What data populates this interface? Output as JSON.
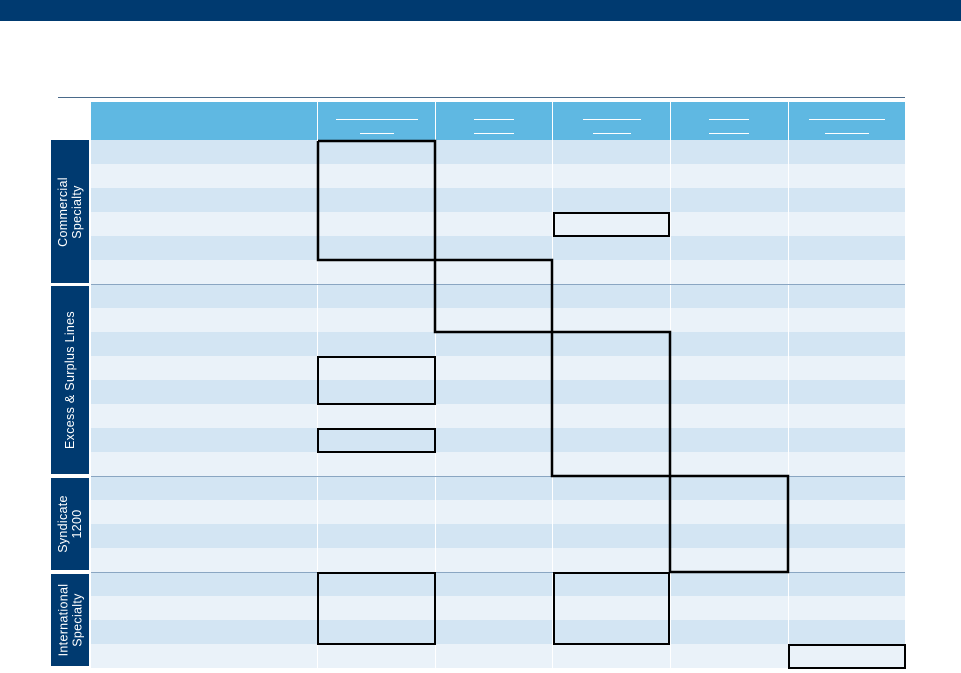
{
  "header_bar": {
    "color": "#003a70"
  },
  "column_header": {
    "color": "#5fb8e2"
  },
  "row_colors": {
    "light": "#eaf2f9",
    "dark": "#d3e5f3",
    "group": "#003a70"
  },
  "groups": [
    {
      "label": "Commercial\nSpecialty"
    },
    {
      "label": "Excess & Surplus Lines"
    },
    {
      "label": "Syndicate\n1200"
    },
    {
      "label": "International\nSpecialty"
    }
  ]
}
